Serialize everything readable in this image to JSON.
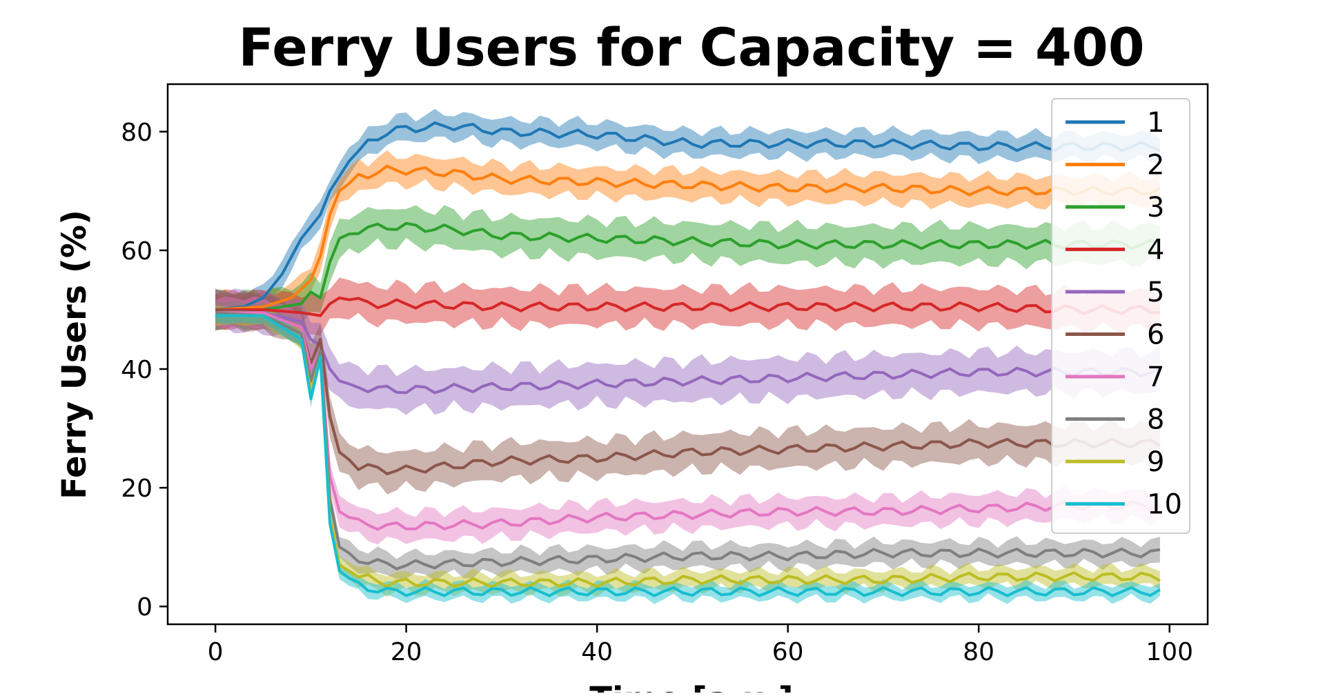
{
  "chart_data": {
    "type": "line",
    "title": "Ferry Users for Capacity = 400",
    "xlabel": "Time [a.u.]",
    "ylabel": "Ferry Users (%)",
    "xlim": [
      -5,
      104
    ],
    "ylim": [
      -3,
      88
    ],
    "xticks": [
      0,
      20,
      40,
      60,
      80,
      100
    ],
    "yticks": [
      0,
      20,
      40,
      60,
      80
    ],
    "grid": false,
    "legend_position": "right",
    "shaded_band": "variability band around each line",
    "series": [
      {
        "name": "1",
        "color": "#1f77b4",
        "band": 2.2,
        "points": [
          [
            0,
            50
          ],
          [
            3,
            50.5
          ],
          [
            5,
            52
          ],
          [
            7,
            56
          ],
          [
            9,
            62
          ],
          [
            11,
            66
          ],
          [
            12,
            70
          ],
          [
            14,
            75
          ],
          [
            16,
            78
          ],
          [
            18,
            80
          ],
          [
            20,
            80.5
          ],
          [
            25,
            81
          ],
          [
            30,
            80
          ],
          [
            40,
            79.5
          ],
          [
            50,
            78
          ],
          [
            60,
            78
          ],
          [
            70,
            78
          ],
          [
            80,
            77.5
          ],
          [
            90,
            77.5
          ],
          [
            99,
            77.5
          ]
        ]
      },
      {
        "name": "2",
        "color": "#ff7f0e",
        "band": 2.5,
        "points": [
          [
            0,
            50
          ],
          [
            5,
            50.5
          ],
          [
            8,
            52
          ],
          [
            10,
            55
          ],
          [
            11,
            59
          ],
          [
            12,
            66
          ],
          [
            13,
            70
          ],
          [
            15,
            72.5
          ],
          [
            18,
            73.5
          ],
          [
            20,
            73.5
          ],
          [
            25,
            73
          ],
          [
            30,
            72
          ],
          [
            40,
            71.5
          ],
          [
            50,
            71
          ],
          [
            60,
            70.5
          ],
          [
            70,
            70.5
          ],
          [
            80,
            70
          ],
          [
            90,
            70
          ],
          [
            99,
            70
          ]
        ]
      },
      {
        "name": "3",
        "color": "#2ca02c",
        "band": 3.2,
        "points": [
          [
            0,
            50
          ],
          [
            5,
            50
          ],
          [
            9,
            51
          ],
          [
            10,
            53
          ],
          [
            11,
            52
          ],
          [
            12,
            58
          ],
          [
            13,
            62
          ],
          [
            15,
            63.5
          ],
          [
            18,
            64
          ],
          [
            20,
            64
          ],
          [
            25,
            63.5
          ],
          [
            30,
            62.5
          ],
          [
            40,
            62
          ],
          [
            50,
            61.5
          ],
          [
            60,
            61
          ],
          [
            70,
            61
          ],
          [
            80,
            61
          ],
          [
            90,
            61
          ],
          [
            99,
            61
          ]
        ]
      },
      {
        "name": "4",
        "color": "#d62728",
        "band": 3.2,
        "points": [
          [
            0,
            50
          ],
          [
            5,
            50
          ],
          [
            9,
            49.5
          ],
          [
            11,
            49
          ],
          [
            12,
            51
          ],
          [
            13,
            52
          ],
          [
            16,
            51
          ],
          [
            20,
            51
          ],
          [
            30,
            50.5
          ],
          [
            40,
            50.5
          ],
          [
            50,
            50.5
          ],
          [
            60,
            50.5
          ],
          [
            70,
            50.5
          ],
          [
            80,
            50.5
          ],
          [
            90,
            50
          ],
          [
            99,
            50
          ]
        ]
      },
      {
        "name": "5",
        "color": "#9467bd",
        "band": 3.5,
        "points": [
          [
            0,
            50
          ],
          [
            5,
            49.5
          ],
          [
            9,
            48
          ],
          [
            10,
            45
          ],
          [
            11,
            44
          ],
          [
            12,
            40
          ],
          [
            13,
            38
          ],
          [
            15,
            37
          ],
          [
            18,
            36.5
          ],
          [
            20,
            36.5
          ],
          [
            30,
            37
          ],
          [
            40,
            37.5
          ],
          [
            50,
            38
          ],
          [
            60,
            38.5
          ],
          [
            70,
            39
          ],
          [
            80,
            39.5
          ],
          [
            90,
            39.5
          ],
          [
            99,
            39.5
          ]
        ]
      },
      {
        "name": "6",
        "color": "#8c564b",
        "band": 3.2,
        "points": [
          [
            0,
            50
          ],
          [
            5,
            49.5
          ],
          [
            9,
            47
          ],
          [
            10,
            41
          ],
          [
            11,
            45
          ],
          [
            12,
            32
          ],
          [
            13,
            26
          ],
          [
            15,
            23.5
          ],
          [
            18,
            23
          ],
          [
            20,
            23
          ],
          [
            30,
            24.5
          ],
          [
            40,
            25
          ],
          [
            50,
            26
          ],
          [
            60,
            26.5
          ],
          [
            70,
            27
          ],
          [
            80,
            27.5
          ],
          [
            90,
            27.5
          ],
          [
            99,
            27.5
          ]
        ]
      },
      {
        "name": "7",
        "color": "#e377c2",
        "band": 2.5,
        "points": [
          [
            0,
            49.5
          ],
          [
            5,
            49.5
          ],
          [
            9,
            47
          ],
          [
            10,
            40
          ],
          [
            11,
            43
          ],
          [
            12,
            22
          ],
          [
            13,
            16
          ],
          [
            15,
            14
          ],
          [
            18,
            13.5
          ],
          [
            20,
            13.5
          ],
          [
            30,
            14
          ],
          [
            40,
            15
          ],
          [
            50,
            15.5
          ],
          [
            60,
            16
          ],
          [
            70,
            16
          ],
          [
            80,
            16.5
          ],
          [
            90,
            17
          ],
          [
            99,
            17
          ]
        ]
      },
      {
        "name": "8",
        "color": "#7f7f7f",
        "band": 2,
        "points": [
          [
            0,
            49.5
          ],
          [
            5,
            49
          ],
          [
            9,
            46
          ],
          [
            10,
            38
          ],
          [
            11,
            43
          ],
          [
            12,
            18
          ],
          [
            13,
            10
          ],
          [
            15,
            8
          ],
          [
            18,
            7
          ],
          [
            20,
            7
          ],
          [
            30,
            7.5
          ],
          [
            40,
            8
          ],
          [
            50,
            8.5
          ],
          [
            60,
            8.5
          ],
          [
            70,
            9
          ],
          [
            80,
            9
          ],
          [
            90,
            9
          ],
          [
            99,
            9
          ]
        ]
      },
      {
        "name": "9",
        "color": "#bcbd22",
        "band": 1.6,
        "points": [
          [
            0,
            49
          ],
          [
            5,
            49
          ],
          [
            9,
            45
          ],
          [
            10,
            36
          ],
          [
            11,
            42
          ],
          [
            12,
            15
          ],
          [
            13,
            7
          ],
          [
            15,
            5
          ],
          [
            18,
            4
          ],
          [
            20,
            4
          ],
          [
            30,
            4
          ],
          [
            40,
            4
          ],
          [
            50,
            4.5
          ],
          [
            60,
            4.5
          ],
          [
            70,
            4.5
          ],
          [
            80,
            5
          ],
          [
            90,
            5
          ],
          [
            99,
            5
          ]
        ]
      },
      {
        "name": "10",
        "color": "#17becf",
        "band": 1.3,
        "points": [
          [
            0,
            49
          ],
          [
            5,
            49
          ],
          [
            9,
            45
          ],
          [
            10,
            35
          ],
          [
            11,
            42
          ],
          [
            12,
            14
          ],
          [
            13,
            6
          ],
          [
            15,
            3.5
          ],
          [
            18,
            2.5
          ],
          [
            20,
            2.5
          ],
          [
            30,
            2.5
          ],
          [
            40,
            2.5
          ],
          [
            50,
            2.5
          ],
          [
            60,
            2.5
          ],
          [
            70,
            2.5
          ],
          [
            80,
            2.5
          ],
          [
            90,
            2.5
          ],
          [
            99,
            2.5
          ]
        ]
      }
    ]
  }
}
